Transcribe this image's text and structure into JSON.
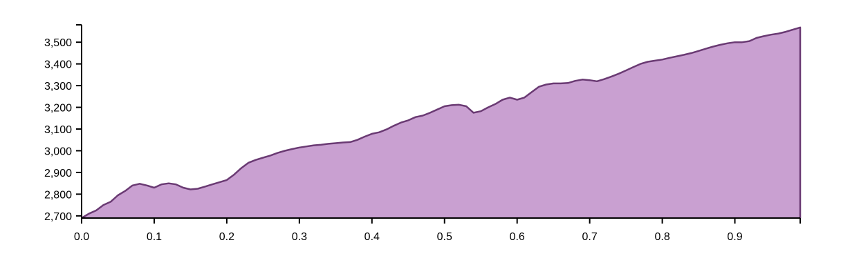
{
  "chart_data": {
    "type": "area",
    "title": "",
    "xlabel": "",
    "ylabel": "",
    "xlim": [
      0.0,
      0.99
    ],
    "ylim": [
      2690,
      3580
    ],
    "grid": false,
    "x_ticks": [
      "0.0",
      "0.1",
      "0.2",
      "0.3",
      "0.4",
      "0.5",
      "0.6",
      "0.7",
      "0.8",
      "0.9"
    ],
    "y_ticks": [
      "2,700",
      "2,800",
      "2,900",
      "3,000",
      "3,100",
      "3,200",
      "3,300",
      "3,400",
      "3,500"
    ],
    "x_tick_values": [
      0.0,
      0.1,
      0.2,
      0.3,
      0.4,
      0.5,
      0.6,
      0.7,
      0.8,
      0.9
    ],
    "y_tick_values": [
      2700,
      2800,
      2900,
      3000,
      3100,
      3200,
      3300,
      3400,
      3500
    ],
    "colors": {
      "fill": "#c9a0d1",
      "stroke": "#6a3a73"
    },
    "series": [
      {
        "x": [
          0.0,
          0.01,
          0.02,
          0.03,
          0.04,
          0.05,
          0.06,
          0.07,
          0.08,
          0.09,
          0.1,
          0.11,
          0.12,
          0.13,
          0.14,
          0.15,
          0.16,
          0.17,
          0.18,
          0.19,
          0.2,
          0.21,
          0.22,
          0.23,
          0.24,
          0.25,
          0.26,
          0.27,
          0.28,
          0.29,
          0.3,
          0.31,
          0.32,
          0.33,
          0.34,
          0.35,
          0.36,
          0.37,
          0.38,
          0.39,
          0.4,
          0.41,
          0.42,
          0.43,
          0.44,
          0.45,
          0.46,
          0.47,
          0.48,
          0.49,
          0.5,
          0.51,
          0.52,
          0.53,
          0.54,
          0.55,
          0.56,
          0.57,
          0.58,
          0.59,
          0.6,
          0.61,
          0.62,
          0.63,
          0.64,
          0.65,
          0.66,
          0.67,
          0.68,
          0.69,
          0.7,
          0.71,
          0.72,
          0.73,
          0.74,
          0.75,
          0.76,
          0.77,
          0.78,
          0.79,
          0.8,
          0.81,
          0.82,
          0.83,
          0.84,
          0.85,
          0.86,
          0.87,
          0.88,
          0.89,
          0.9,
          0.91,
          0.92,
          0.93,
          0.94,
          0.95,
          0.96,
          0.97,
          0.98,
          0.99
        ],
        "values": [
          2690,
          2710,
          2725,
          2750,
          2765,
          2795,
          2815,
          2840,
          2848,
          2840,
          2830,
          2845,
          2850,
          2845,
          2830,
          2822,
          2825,
          2835,
          2845,
          2855,
          2865,
          2890,
          2920,
          2945,
          2958,
          2968,
          2978,
          2990,
          3000,
          3008,
          3015,
          3020,
          3025,
          3028,
          3032,
          3035,
          3038,
          3040,
          3050,
          3065,
          3078,
          3085,
          3098,
          3115,
          3130,
          3140,
          3155,
          3162,
          3175,
          3190,
          3205,
          3210,
          3212,
          3205,
          3175,
          3182,
          3200,
          3215,
          3235,
          3245,
          3235,
          3245,
          3270,
          3295,
          3305,
          3310,
          3310,
          3312,
          3322,
          3328,
          3325,
          3320,
          3330,
          3342,
          3355,
          3370,
          3385,
          3400,
          3410,
          3415,
          3420,
          3428,
          3435,
          3442,
          3450,
          3460,
          3470,
          3480,
          3488,
          3495,
          3500,
          3500,
          3505,
          3520,
          3528,
          3535,
          3540,
          3548,
          3558,
          3568
        ]
      }
    ]
  }
}
